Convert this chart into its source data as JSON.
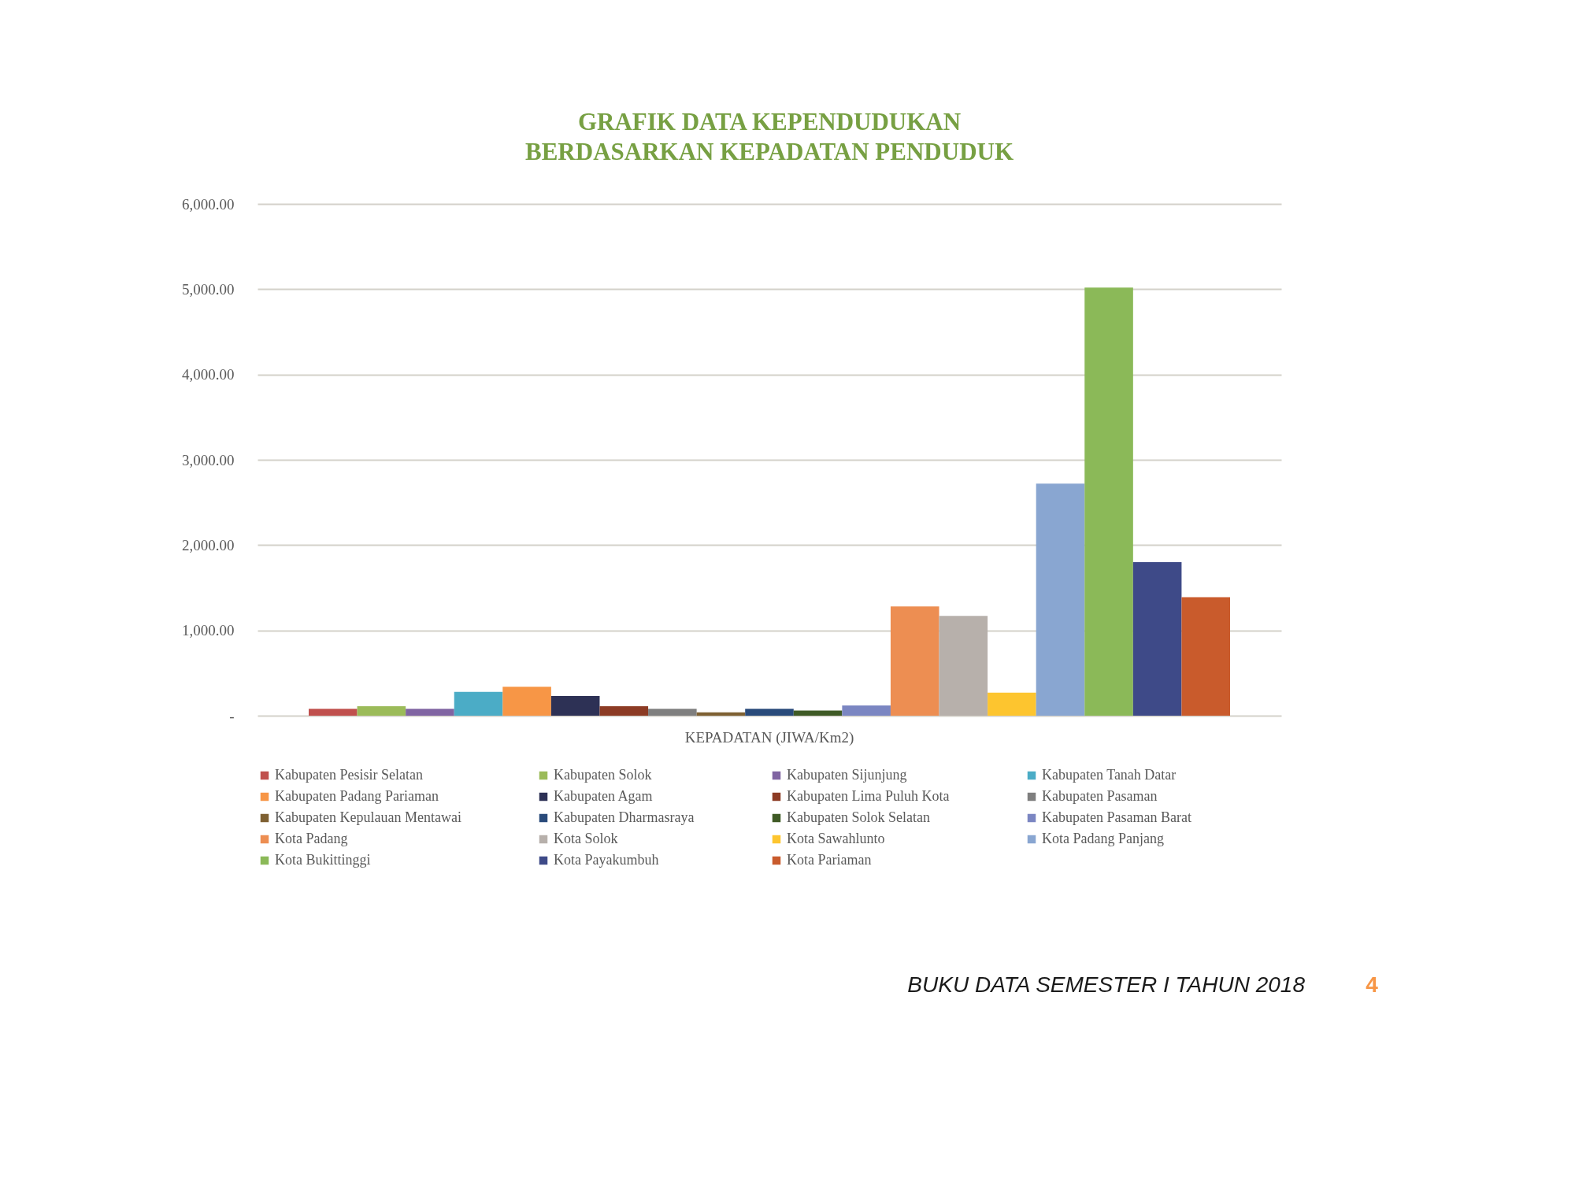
{
  "chart_data": {
    "type": "bar",
    "title": "GRAFIK DATA KEPENDUDUKAN\nBERDASARKAN KEPADATAN PENDUDUK",
    "categories": [
      "KEPADATAN (JIWA/Km2)"
    ],
    "series": [
      {
        "name": "Kabupaten Pesisir Selatan",
        "color": "#c0504d",
        "values": [
          80
        ]
      },
      {
        "name": "Kabupaten Solok",
        "color": "#9bbb59",
        "values": [
          110
        ]
      },
      {
        "name": "Kabupaten Sijunjung",
        "color": "#8064a2",
        "values": [
          80
        ]
      },
      {
        "name": "Kabupaten Tanah Datar",
        "color": "#4bacc6",
        "values": [
          280
        ]
      },
      {
        "name": "Kabupaten Padang Pariaman",
        "color": "#f79646",
        "values": [
          340
        ]
      },
      {
        "name": "Kabupaten Agam",
        "color": "#2d3155",
        "values": [
          230
        ]
      },
      {
        "name": "Kabupaten Lima Puluh Kota",
        "color": "#8c3b24",
        "values": [
          110
        ]
      },
      {
        "name": "Kabupaten Pasaman",
        "color": "#7f7f7f",
        "values": [
          80
        ]
      },
      {
        "name": "Kabupaten Kepulauan Mentawai",
        "color": "#7e6032",
        "values": [
          40
        ]
      },
      {
        "name": "Kabupaten Dharmasraya",
        "color": "#294a7a",
        "values": [
          80
        ]
      },
      {
        "name": "Kabupaten Solok Selatan",
        "color": "#3f5a25",
        "values": [
          60
        ]
      },
      {
        "name": "Kabupaten Pasaman Barat",
        "color": "#7b86c2",
        "values": [
          120
        ]
      },
      {
        "name": "Kota Padang",
        "color": "#ed8e52",
        "values": [
          1280
        ]
      },
      {
        "name": "Kota Solok",
        "color": "#b7b0ab",
        "values": [
          1170
        ]
      },
      {
        "name": "Kota Sawahlunto",
        "color": "#fdc52f",
        "values": [
          270
        ]
      },
      {
        "name": "Kota Padang Panjang",
        "color": "#89a6d1",
        "values": [
          2720
        ]
      },
      {
        "name": "Kota Bukittinggi",
        "color": "#8bb958",
        "values": [
          5020
        ]
      },
      {
        "name": "Kota Payakumbuh",
        "color": "#3e4a88",
        "values": [
          1800
        ]
      },
      {
        "name": "Kota Pariaman",
        "color": "#c95b2c",
        "values": [
          1390
        ]
      }
    ],
    "ylim": [
      0,
      6000
    ],
    "yticks": [
      {
        "value": 0,
        "label": "-"
      },
      {
        "value": 1000,
        "label": "1,000.00"
      },
      {
        "value": 2000,
        "label": "2,000.00"
      },
      {
        "value": 3000,
        "label": "3,000.00"
      },
      {
        "value": 4000,
        "label": "4,000.00"
      },
      {
        "value": 5000,
        "label": "5,000.00"
      },
      {
        "value": 6000,
        "label": "6,000.00"
      }
    ],
    "grid": "y",
    "legend": "bottom",
    "annotations": [
      "BUKU DATA SEMESTER I TAHUN 2018",
      "4"
    ]
  }
}
